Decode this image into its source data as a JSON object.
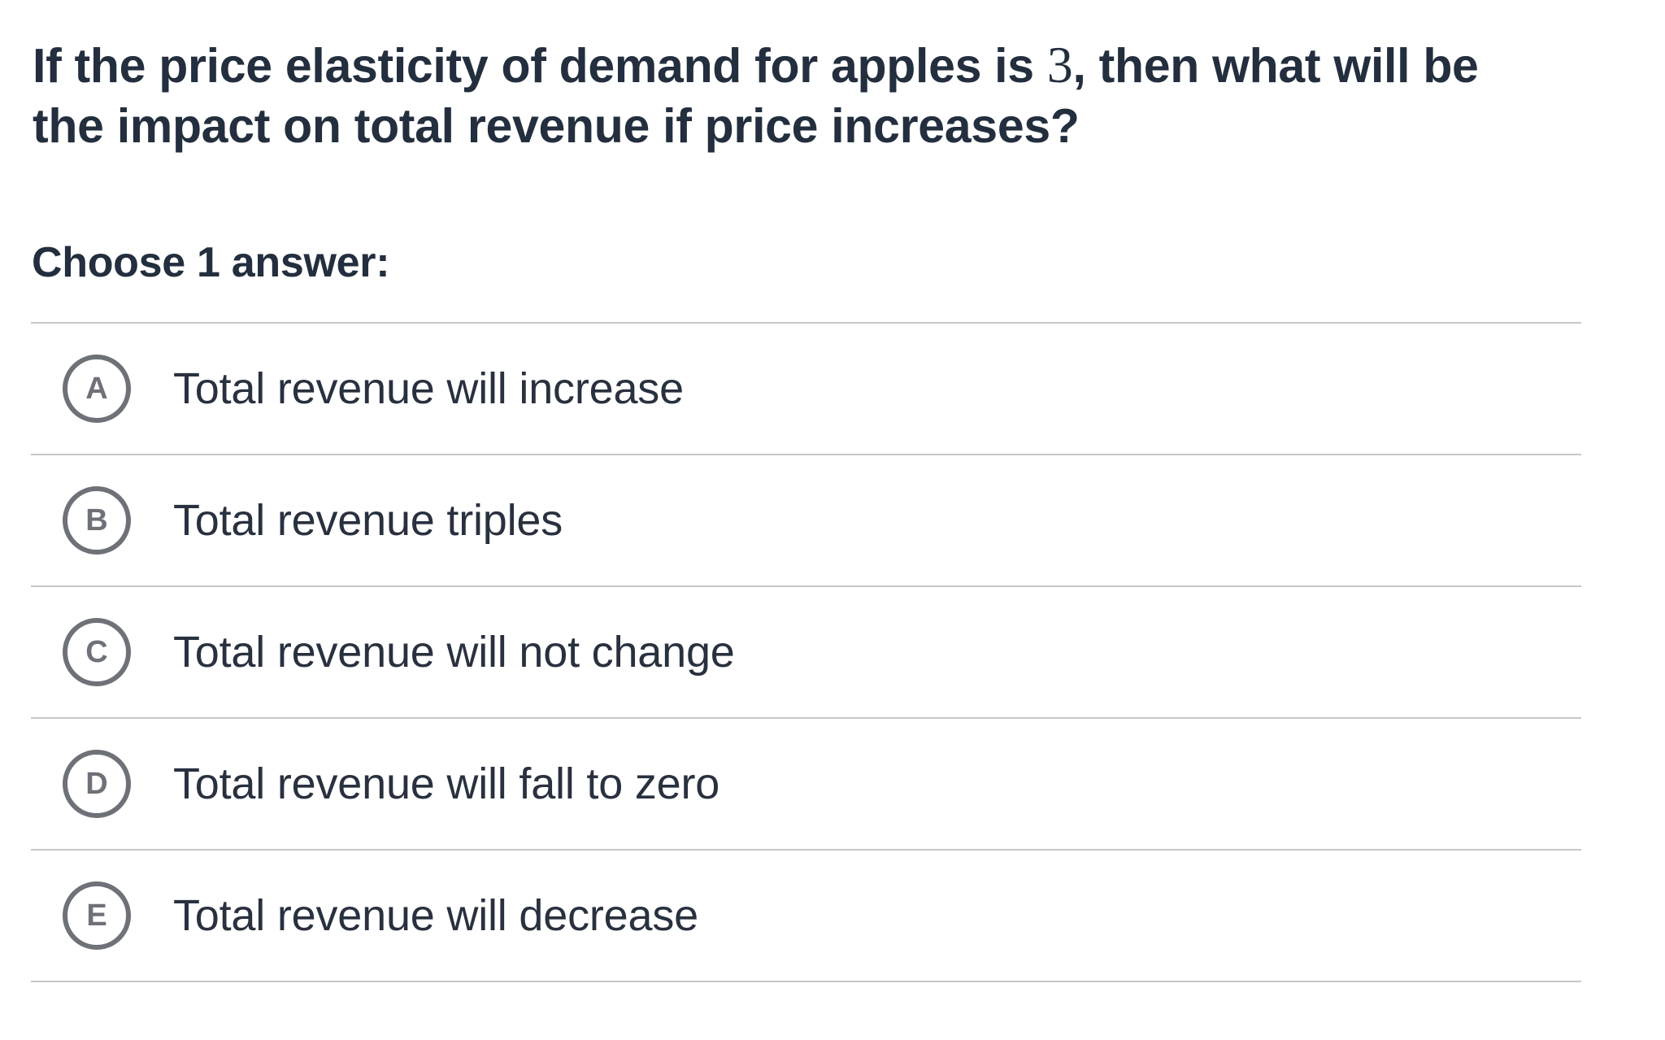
{
  "question": {
    "text_before_math": "If the price elasticity of demand for apples is ",
    "math_value": "3",
    "text_after_math": ", then what will be the impact on total revenue if price increases?"
  },
  "choose_prompt": "Choose 1 answer:",
  "options": [
    {
      "letter": "A",
      "label": "Total revenue will increase"
    },
    {
      "letter": "B",
      "label": "Total revenue triples"
    },
    {
      "letter": "C",
      "label": "Total revenue will not change"
    },
    {
      "letter": "D",
      "label": "Total revenue will fall to zero"
    },
    {
      "letter": "E",
      "label": "Total revenue will decrease"
    }
  ],
  "colors": {
    "text_primary": "#232e3e",
    "option_text": "#29313f",
    "radio_gray": "#6e7278",
    "divider": "#c5c7c9",
    "background": "#ffffff"
  }
}
